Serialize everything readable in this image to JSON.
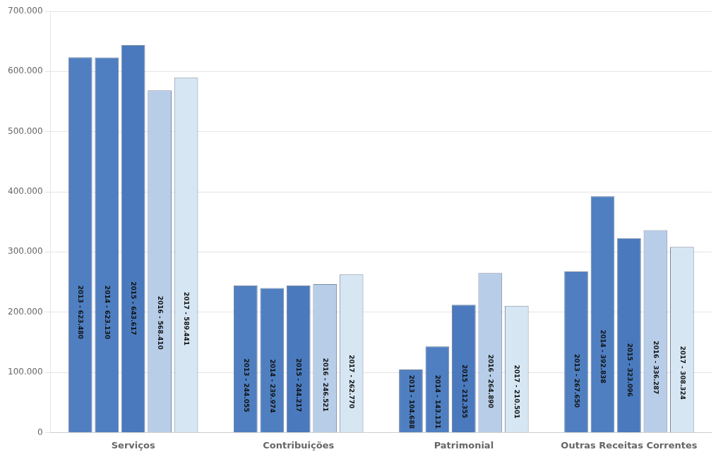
{
  "chart_data": {
    "type": "bar",
    "categories": [
      "Serviços",
      "Contribuições",
      "Patrimonial",
      "Outras Receitas Correntes"
    ],
    "series": [
      {
        "name": "2013",
        "color": "#4F7FC0",
        "values": [
          623480,
          244055,
          104688,
          267650
        ],
        "value_labels": [
          "2013 - 623.480",
          "2013 - 244.055",
          "2013 - 104.688",
          "2013 - 267.650"
        ]
      },
      {
        "name": "2014",
        "color": "#4F7FC0",
        "values": [
          623130,
          239974,
          143131,
          392838
        ],
        "value_labels": [
          "2014 - 623.130",
          "2014 - 239.974",
          "2014 - 143.131",
          "2014 - 392.838"
        ]
      },
      {
        "name": "2015",
        "color": "#4A7ABD",
        "values": [
          643617,
          244217,
          212355,
          323096
        ],
        "value_labels": [
          "2015 - 643.617",
          "2015 - 244.217",
          "2015 - 212.355",
          "2015 - 323.096"
        ]
      },
      {
        "name": "2016",
        "color": "#B8CEE8",
        "values": [
          568410,
          246521,
          264890,
          336287
        ],
        "value_labels": [
          "2016 - 568.410",
          "2016 - 246.521",
          "2016 - 264.890",
          "2016 - 336.287"
        ]
      },
      {
        "name": "2017",
        "color": "#D6E6F3",
        "values": [
          589441,
          262770,
          210501,
          308324
        ],
        "value_labels": [
          "2017 - 589.441",
          "2017 - 262.770",
          "2017 - 210.501",
          "2017 - 308.324"
        ]
      }
    ],
    "ylim": [
      0,
      700000
    ],
    "yticks": [
      0,
      {
        "value": 100000,
        "label": "100.000"
      },
      {
        "value": 200000,
        "label": "200.000"
      },
      {
        "value": 300000,
        "label": "300.000"
      },
      {
        "value": 400000,
        "label": "400.000"
      },
      {
        "value": 500000,
        "label": "500.000"
      },
      {
        "value": 600000,
        "label": "600.000"
      },
      {
        "value": 700000,
        "label": "700.000"
      }
    ],
    "grid": true,
    "data_labels": true
  }
}
